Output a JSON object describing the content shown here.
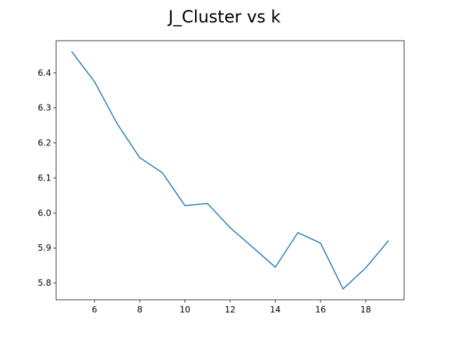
{
  "chart_data": {
    "type": "line",
    "title": "J_Cluster vs k",
    "xlabel": "",
    "ylabel": "",
    "xlim": [
      4.3,
      19.7
    ],
    "ylim": [
      5.752,
      6.492
    ],
    "x_ticks": [
      6,
      8,
      10,
      12,
      14,
      16,
      18
    ],
    "y_ticks": [
      5.8,
      5.9,
      6.0,
      6.1,
      6.2,
      6.3,
      6.4
    ],
    "x_tick_labels": [
      "6",
      "8",
      "10",
      "12",
      "14",
      "16",
      "18"
    ],
    "y_tick_labels": [
      "5.8",
      "5.9",
      "6.0",
      "6.1",
      "6.2",
      "6.3",
      "6.4"
    ],
    "grid": false,
    "series": [
      {
        "x": [
          5,
          6,
          7,
          8,
          9,
          10,
          11,
          12,
          13,
          14,
          15,
          16,
          17,
          18,
          19
        ],
        "y": [
          6.46,
          6.375,
          6.255,
          6.158,
          6.115,
          6.021,
          6.027,
          5.958,
          5.902,
          5.845,
          5.944,
          5.914,
          5.783,
          5.843,
          5.92
        ]
      }
    ]
  },
  "colors": {
    "line": "#1f77b4",
    "axes": "#000000",
    "background": "#ffffff"
  }
}
